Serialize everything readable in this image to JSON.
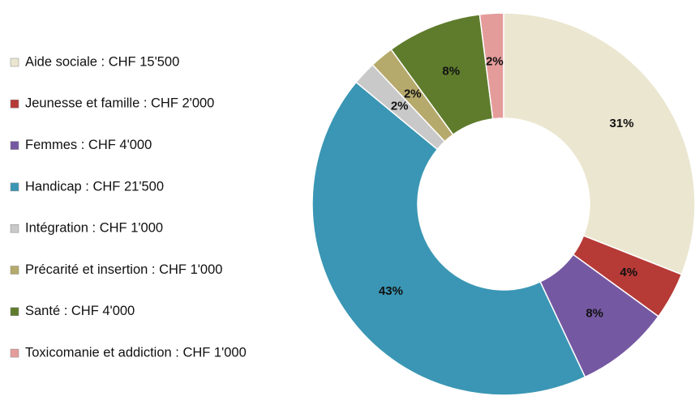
{
  "chart_data": {
    "type": "donut",
    "categories": [
      "Aide sociale : CHF 15'500",
      "Jeunesse et famille : CHF 2'000",
      "Femmes : CHF 4'000",
      "Handicap : CHF 21'500",
      "Intégration : CHF 1'000",
      "Précarité et insertion : CHF 1'000",
      "Santé : CHF 4'000",
      "Toxicomanie et addiction : CHF 1'000"
    ],
    "values": [
      31,
      4,
      8,
      43,
      2,
      2,
      8,
      2
    ],
    "value_labels": [
      "31%",
      "4%",
      "8%",
      "43%",
      "2%",
      "2%",
      "8%",
      "2%"
    ],
    "colors": [
      "#ebe6d0",
      "#b63a36",
      "#7558a2",
      "#3a96b4",
      "#c9c9c9",
      "#b6a96c",
      "#5e7c2c",
      "#e49c9b"
    ],
    "legend": "left"
  }
}
